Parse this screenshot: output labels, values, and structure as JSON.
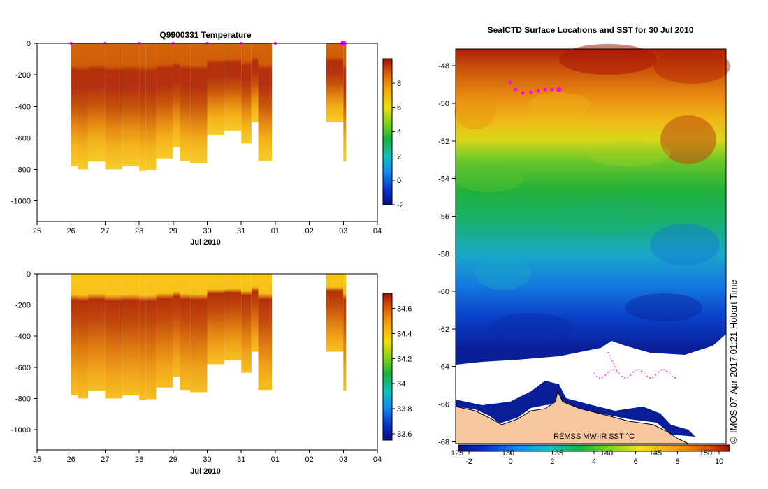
{
  "chart_data": [
    {
      "type": "heatmap",
      "title": "Q9900331  Temperature",
      "xlabel": "Jul 2010",
      "x_ticks": [
        "25",
        "26",
        "27",
        "28",
        "29",
        "30",
        "31",
        "01",
        "02",
        "03",
        "04"
      ],
      "xlim_days": [
        25,
        35
      ],
      "y_ticks": [
        "0",
        "-200",
        "-400",
        "-600",
        "-800",
        "-1000"
      ],
      "ylim": [
        -1130,
        0
      ],
      "colorbar_ticks": [
        "8",
        "6",
        "4",
        "2",
        "0",
        "-2"
      ],
      "colorbar_range": [
        -2,
        10
      ],
      "profile_times": [
        26,
        27,
        28,
        29,
        30,
        31,
        32,
        34
      ],
      "profile_max_depth": [
        -780,
        -800,
        -750,
        -800,
        -780,
        -810,
        -805,
        -730,
        -660,
        -745,
        -760,
        -580,
        -555,
        -635,
        -500,
        -745
      ],
      "colors": {
        "surface": "#d4660a",
        "core": "#b5300a",
        "deep": "#f0c020",
        "bottom": "#8be030"
      }
    },
    {
      "type": "heatmap",
      "title": "",
      "xlabel": "Jul 2010",
      "x_ticks": [
        "25",
        "26",
        "27",
        "28",
        "29",
        "30",
        "31",
        "01",
        "02",
        "03",
        "04"
      ],
      "xlim_days": [
        25,
        35
      ],
      "y_ticks": [
        "0",
        "-200",
        "-400",
        "-600",
        "-800",
        "-1000"
      ],
      "ylim": [
        -1130,
        0
      ],
      "colorbar_ticks": [
        "34.6",
        "34.4",
        "34.2",
        "34",
        "33.8",
        "33.6"
      ],
      "colorbar_range": [
        33.55,
        34.72
      ],
      "colors": {
        "surface": "#f8c818",
        "core": "#b5300a",
        "deep": "#f3a820"
      }
    },
    {
      "type": "heatmap",
      "title": "SealCTD Surface Locations and SST for 30 Jul 2010",
      "y_ticks": [
        "-48",
        "-50",
        "-52",
        "-54",
        "-56",
        "-58",
        "-60",
        "-62",
        "-64",
        "-66",
        "-68"
      ],
      "ylim": [
        -68.1,
        -47.1
      ],
      "lon_ticks": [
        "125",
        "130",
        "135",
        "140",
        "145",
        "150"
      ],
      "sst_ticks": [
        "-2",
        "0",
        "2",
        "4",
        "6",
        "8",
        "10"
      ],
      "sst_range": [
        -2.5,
        10.5
      ],
      "colorbar_label": "REMSS MW-IR SST °C",
      "credit": "IMOS 07-Apr-2017 01:21 Hobart Time",
      "copyright": "©"
    }
  ]
}
